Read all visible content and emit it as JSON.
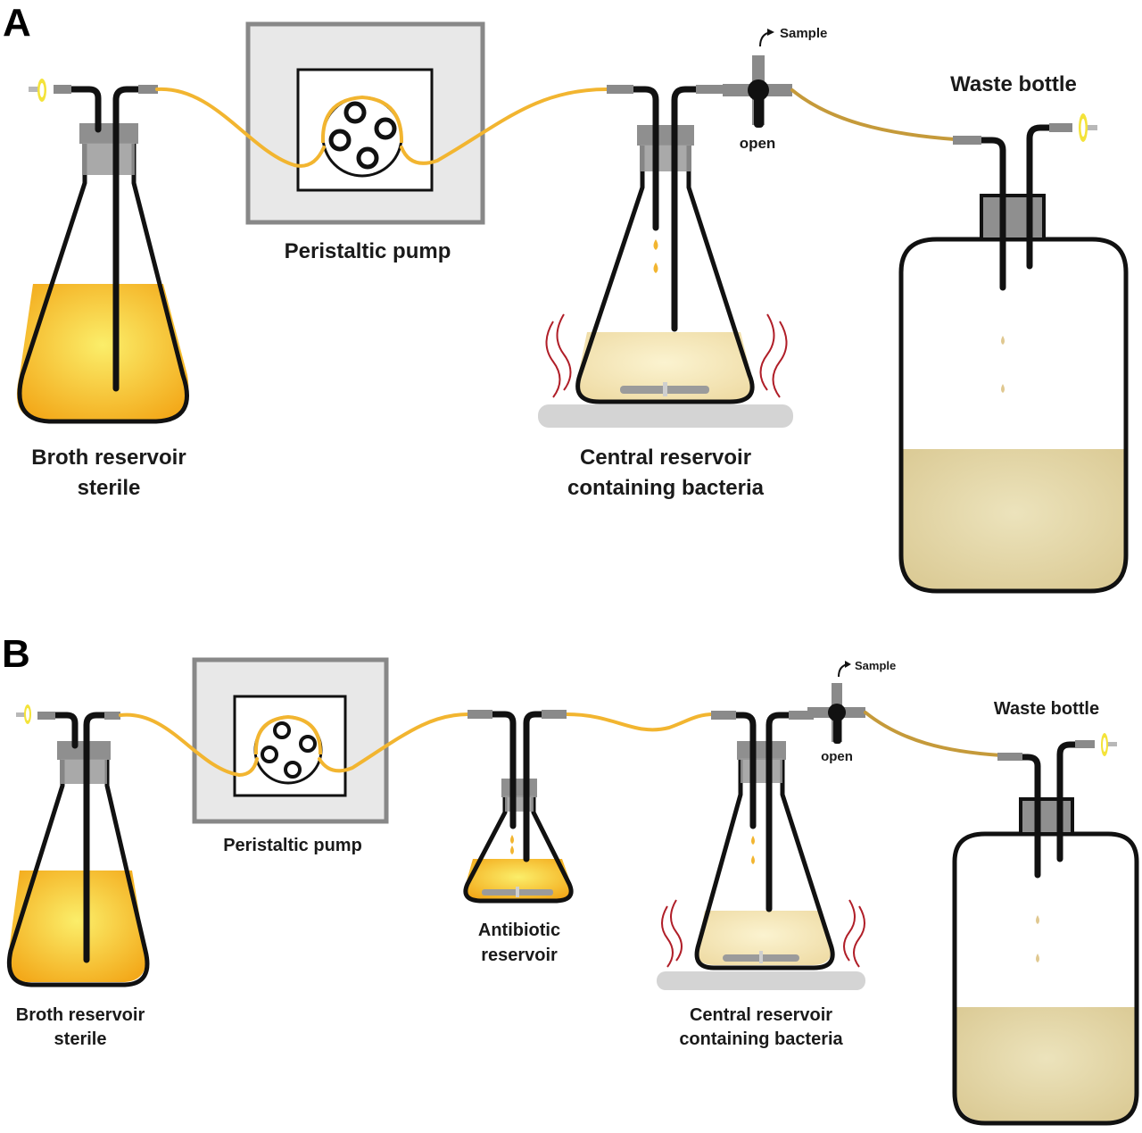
{
  "panels": [
    {
      "letter": "A",
      "labels": {
        "broth_line1": "Broth reservoir",
        "broth_line2": "sterile",
        "pump": "Peristaltic pump",
        "central_line1": "Central reservoir",
        "central_line2": "containing bacteria",
        "waste": "Waste bottle",
        "sample": "Sample",
        "valve": "open"
      }
    },
    {
      "letter": "B",
      "labels": {
        "broth_line1": "Broth reservoir",
        "broth_line2": "sterile",
        "pump": "Peristaltic pump",
        "antibiotic_line1": "Antibiotic",
        "antibiotic_line2": "reservoir",
        "central_line1": "Central reservoir",
        "central_line2": "containing bacteria",
        "waste": "Waste bottle",
        "sample": "Sample",
        "valve": "open"
      }
    }
  ],
  "colors": {
    "broth": "#f6b51d",
    "broth_light": "#fbe46a",
    "culture": "#f3e3b0",
    "waste": "#e0d2a2",
    "tubing": "#f2b530",
    "heat_lines": "#b01e28",
    "filter": "#f4e33a"
  }
}
